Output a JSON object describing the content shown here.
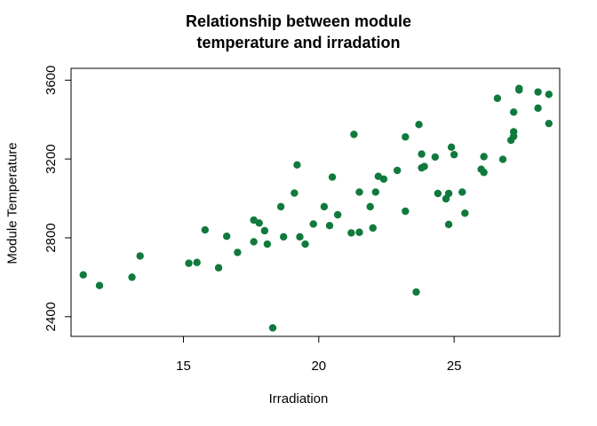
{
  "chart_data": {
    "type": "scatter",
    "title": "Relationship between module temperature and irradation",
    "title_lines": [
      "Relationship between module",
      "temperature and irradation"
    ],
    "xlabel": "Irradiation",
    "ylabel": "Module Temperature",
    "xlim": [
      10.85,
      28.9
    ],
    "ylim": [
      2300,
      3660
    ],
    "xticks": [
      15,
      20,
      25
    ],
    "yticks": [
      2400,
      2800,
      3200,
      3600
    ],
    "grid": false,
    "legend": "none",
    "point_color": "#107a3c",
    "points": [
      {
        "x": 11.3,
        "y": 2612
      },
      {
        "x": 11.9,
        "y": 2558
      },
      {
        "x": 13.1,
        "y": 2600
      },
      {
        "x": 13.4,
        "y": 2708
      },
      {
        "x": 15.2,
        "y": 2671
      },
      {
        "x": 15.5,
        "y": 2675
      },
      {
        "x": 15.8,
        "y": 2840
      },
      {
        "x": 16.3,
        "y": 2648
      },
      {
        "x": 16.6,
        "y": 2808
      },
      {
        "x": 17.0,
        "y": 2726
      },
      {
        "x": 17.6,
        "y": 2890
      },
      {
        "x": 17.6,
        "y": 2780
      },
      {
        "x": 17.8,
        "y": 2875
      },
      {
        "x": 18.0,
        "y": 2836
      },
      {
        "x": 18.1,
        "y": 2768
      },
      {
        "x": 18.3,
        "y": 2343
      },
      {
        "x": 18.6,
        "y": 2958
      },
      {
        "x": 18.7,
        "y": 2805
      },
      {
        "x": 19.1,
        "y": 3027
      },
      {
        "x": 19.2,
        "y": 3170
      },
      {
        "x": 19.3,
        "y": 2805
      },
      {
        "x": 19.5,
        "y": 2768
      },
      {
        "x": 19.8,
        "y": 2870
      },
      {
        "x": 20.2,
        "y": 2958
      },
      {
        "x": 20.4,
        "y": 2862
      },
      {
        "x": 20.5,
        "y": 3108
      },
      {
        "x": 20.7,
        "y": 2917
      },
      {
        "x": 21.2,
        "y": 2825
      },
      {
        "x": 21.3,
        "y": 3325
      },
      {
        "x": 21.5,
        "y": 3032
      },
      {
        "x": 21.5,
        "y": 2828
      },
      {
        "x": 21.9,
        "y": 2958
      },
      {
        "x": 22.0,
        "y": 2850
      },
      {
        "x": 22.1,
        "y": 3032
      },
      {
        "x": 22.2,
        "y": 3112
      },
      {
        "x": 22.4,
        "y": 3098
      },
      {
        "x": 22.9,
        "y": 3142
      },
      {
        "x": 23.2,
        "y": 2935
      },
      {
        "x": 23.2,
        "y": 3312
      },
      {
        "x": 23.6,
        "y": 2525
      },
      {
        "x": 23.7,
        "y": 3375
      },
      {
        "x": 23.8,
        "y": 3155
      },
      {
        "x": 23.8,
        "y": 3225
      },
      {
        "x": 23.9,
        "y": 3162
      },
      {
        "x": 24.3,
        "y": 3210
      },
      {
        "x": 24.4,
        "y": 3025
      },
      {
        "x": 24.7,
        "y": 2998
      },
      {
        "x": 24.8,
        "y": 3025
      },
      {
        "x": 24.8,
        "y": 2868
      },
      {
        "x": 24.9,
        "y": 3260
      },
      {
        "x": 25.0,
        "y": 3222
      },
      {
        "x": 25.3,
        "y": 3032
      },
      {
        "x": 25.4,
        "y": 2925
      },
      {
        "x": 26.0,
        "y": 3148
      },
      {
        "x": 26.1,
        "y": 3212
      },
      {
        "x": 26.1,
        "y": 3132
      },
      {
        "x": 26.6,
        "y": 3508
      },
      {
        "x": 26.8,
        "y": 3198
      },
      {
        "x": 27.1,
        "y": 3295
      },
      {
        "x": 27.2,
        "y": 3338
      },
      {
        "x": 27.2,
        "y": 3438
      },
      {
        "x": 27.2,
        "y": 3315
      },
      {
        "x": 27.4,
        "y": 3558
      },
      {
        "x": 27.4,
        "y": 3550
      },
      {
        "x": 28.1,
        "y": 3540
      },
      {
        "x": 28.1,
        "y": 3458
      },
      {
        "x": 28.5,
        "y": 3528
      },
      {
        "x": 28.5,
        "y": 3380
      }
    ]
  }
}
